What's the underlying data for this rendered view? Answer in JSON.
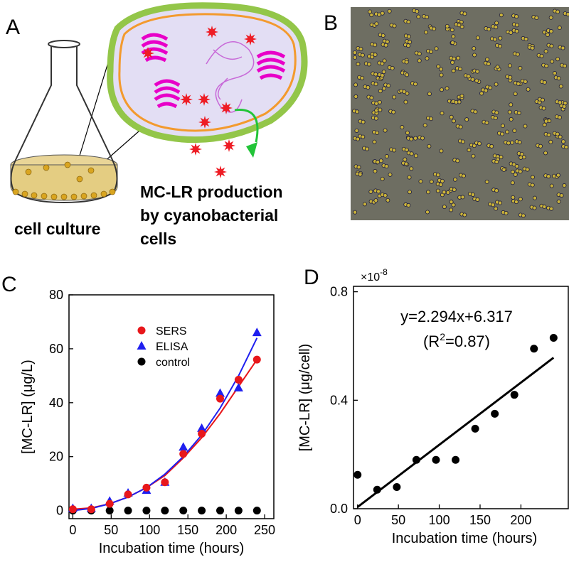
{
  "panel_a": {
    "label": "A",
    "flask_caption": "cell culture",
    "cell_caption": [
      "MC-LR production",
      "by cyanobacterial",
      "cells"
    ]
  },
  "panel_b": {
    "label": "B"
  },
  "chart_data": [
    {
      "type": "scatter",
      "label": "C",
      "x_label": "Incubation time (hours)",
      "y_label": "[MC-LR] (μg/L)",
      "x": [
        0,
        24,
        48,
        72,
        96,
        120,
        144,
        168,
        192,
        216,
        240
      ],
      "series": [
        {
          "name": "SERS",
          "color": "#e8171b",
          "marker": "circle",
          "values": [
            0.5,
            0.5,
            2.5,
            6,
            8.5,
            10.5,
            21,
            28.5,
            41.5,
            48.5,
            56
          ]
        },
        {
          "name": "ELISA",
          "color": "#1f1fef",
          "marker": "triangle",
          "values": [
            0.8,
            0.8,
            3.5,
            6.5,
            7.5,
            10.5,
            23.5,
            30.5,
            43.5,
            45.5,
            66
          ]
        },
        {
          "name": "control",
          "color": "#000000",
          "marker": "circle",
          "values": [
            0,
            0,
            0,
            0,
            0,
            0,
            0,
            0,
            0,
            0,
            0
          ]
        }
      ],
      "fits": [
        {
          "color": "#e8171b",
          "values": [
            0.5,
            1,
            2.5,
            5,
            8.5,
            13,
            19.5,
            27,
            36,
            46,
            56
          ]
        },
        {
          "color": "#1f1fef",
          "values": [
            0,
            0.8,
            2.5,
            5,
            8.5,
            13.5,
            20,
            28,
            38,
            50,
            64
          ]
        }
      ],
      "xlim": [
        -5,
        262
      ],
      "ylim": [
        -3,
        80
      ],
      "xticks": [
        0,
        50,
        100,
        150,
        200,
        250
      ],
      "yticks": [
        0,
        20,
        40,
        60,
        80
      ],
      "legend": "upper-middle"
    },
    {
      "type": "scatter",
      "label": "D",
      "x_label": "Incubation time (hours)",
      "y_label": "[MC-LR] (μg/cell)",
      "scale_label": "×10",
      "scale_exponent": "-8",
      "equation": "y=2.294x+6.317",
      "r2": [
        "(R",
        "2",
        "=0.87)"
      ],
      "x": [
        0,
        24,
        48,
        72,
        96,
        120,
        144,
        168,
        192,
        216,
        240
      ],
      "series": [
        {
          "color": "#000000",
          "marker": "circle",
          "values": [
            0.125,
            0.07,
            0.08,
            0.18,
            0.18,
            0.18,
            0.295,
            0.35,
            0.42,
            0.59,
            0.63
          ]
        }
      ],
      "fit_line": {
        "color": "#000000",
        "x": [
          0,
          240
        ],
        "values": [
          0.006,
          0.557
        ]
      },
      "xlim": [
        -5,
        258
      ],
      "ylim": [
        0,
        0.82
      ],
      "xticks": [
        0,
        50,
        100,
        150,
        200
      ],
      "yticks": [
        {
          "value": 0,
          "label": "0.0"
        },
        {
          "value": 0.4,
          "label": "0.4"
        },
        {
          "value": 0.8,
          "label": "0.8"
        }
      ]
    }
  ]
}
